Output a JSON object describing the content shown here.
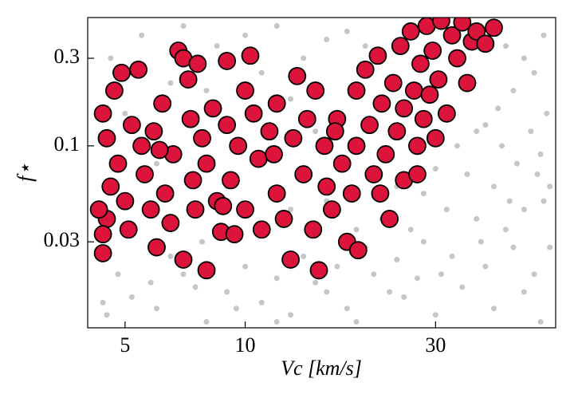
{
  "chart_data": {
    "type": "scatter",
    "xlabel": "Vc [km/s]",
    "ylabel": "f⋆",
    "xscale": "log",
    "yscale": "log",
    "xlim": [
      4.03,
      60
    ],
    "ylim": [
      0.0102,
      0.5
    ],
    "xticks": [
      5,
      10,
      30
    ],
    "yticks": [
      0.03,
      0.1,
      0.3
    ],
    "series": [
      {
        "color": "#808080",
        "x": [
          4.5,
          5.2,
          6,
          7,
          8,
          9,
          11,
          13,
          15,
          18,
          21,
          25,
          30,
          35,
          42,
          50,
          55,
          4.8,
          6.5,
          7.5,
          10,
          12,
          14,
          17,
          20,
          24,
          28,
          33,
          40,
          47,
          53,
          45,
          38,
          50,
          56,
          32,
          42,
          36,
          48,
          55,
          44,
          52,
          40,
          57,
          47,
          53,
          50,
          56,
          45,
          58,
          26,
          22,
          19,
          16,
          13,
          9,
          6,
          5,
          4.6,
          5.5,
          7,
          8.5,
          10,
          12,
          14,
          16,
          18,
          20,
          8,
          11,
          13,
          6.5,
          15,
          17,
          24,
          28,
          30,
          34,
          38,
          43,
          58,
          54,
          46,
          39,
          31,
          27,
          23,
          19,
          16,
          12,
          9.5,
          5.8,
          4.4,
          7.8,
          11,
          36
        ],
        "values": [
          0.012,
          0.015,
          0.013,
          0.02,
          0.011,
          0.016,
          0.014,
          0.012,
          0.018,
          0.013,
          0.02,
          0.015,
          0.012,
          0.017,
          0.013,
          0.016,
          0.011,
          0.02,
          0.025,
          0.017,
          0.022,
          0.019,
          0.025,
          0.022,
          0.028,
          0.024,
          0.03,
          0.025,
          0.022,
          0.028,
          0.02,
          0.035,
          0.04,
          0.045,
          0.05,
          0.045,
          0.06,
          0.07,
          0.08,
          0.09,
          0.1,
          0.12,
          0.13,
          0.15,
          0.2,
          0.25,
          0.3,
          0.4,
          0.35,
          0.028,
          0.035,
          0.04,
          0.035,
          0.05,
          0.045,
          0.06,
          0.08,
          0.15,
          0.3,
          0.4,
          0.45,
          0.35,
          0.4,
          0.45,
          0.3,
          0.38,
          0.42,
          0.35,
          0.2,
          0.25,
          0.18,
          0.22,
          0.12,
          0.08,
          0.06,
          0.055,
          0.075,
          0.1,
          0.12,
          0.16,
          0.06,
          0.07,
          0.05,
          0.03,
          0.02,
          0.019,
          0.016,
          0.011,
          0.016,
          0.011,
          0.013,
          0.018,
          0.014,
          0.03,
          0.035,
          0.45
        ]
      },
      {
        "color": "#dc143c",
        "x": [
          4.4,
          4.5,
          4.6,
          4.5,
          4.4,
          4.4,
          4.7,
          4.8,
          5,
          5.1,
          5.2,
          4.9,
          5.4,
          5.5,
          5.6,
          5.8,
          6,
          5.9,
          6.2,
          6.3,
          6.5,
          6.6,
          6.8,
          7,
          7,
          7.2,
          7.3,
          7.4,
          7.5,
          7.6,
          7.8,
          8,
          8,
          8.3,
          8.5,
          8.7,
          9,
          9,
          9.2,
          9.4,
          9.6,
          10,
          10,
          10.3,
          10.5,
          10.8,
          11,
          11.5,
          12,
          12,
          12.5,
          13,
          13.2,
          13.5,
          14,
          14.3,
          14.8,
          15,
          15.3,
          15.8,
          16,
          16.5,
          17,
          17.5,
          18,
          18.5,
          19,
          19,
          19.2,
          20,
          20.5,
          21,
          21.5,
          22,
          22.5,
          23,
          23.5,
          24,
          24.5,
          25,
          25,
          26,
          26.5,
          27,
          27.5,
          28,
          28.5,
          29,
          29.5,
          30,
          30.5,
          31,
          32,
          33,
          34,
          35,
          36,
          37,
          38,
          40,
          42,
          4.3,
          6.1,
          8.8,
          11.8,
          16.8,
          21.8,
          27
        ],
        "values": [
          0.15,
          0.11,
          0.06,
          0.04,
          0.033,
          0.026,
          0.2,
          0.08,
          0.05,
          0.035,
          0.13,
          0.25,
          0.26,
          0.1,
          0.07,
          0.045,
          0.028,
          0.12,
          0.17,
          0.055,
          0.038,
          0.09,
          0.33,
          0.3,
          0.024,
          0.23,
          0.14,
          0.065,
          0.045,
          0.28,
          0.11,
          0.08,
          0.021,
          0.16,
          0.05,
          0.034,
          0.29,
          0.13,
          0.065,
          0.033,
          0.1,
          0.2,
          0.045,
          0.31,
          0.15,
          0.085,
          0.035,
          0.12,
          0.055,
          0.17,
          0.04,
          0.024,
          0.11,
          0.24,
          0.07,
          0.14,
          0.035,
          0.2,
          0.021,
          0.1,
          0.06,
          0.045,
          0.14,
          0.08,
          0.03,
          0.055,
          0.2,
          0.1,
          0.027,
          0.26,
          0.13,
          0.07,
          0.31,
          0.17,
          0.09,
          0.04,
          0.22,
          0.12,
          0.35,
          0.16,
          0.065,
          0.42,
          0.2,
          0.1,
          0.28,
          0.14,
          0.45,
          0.19,
          0.33,
          0.11,
          0.23,
          0.48,
          0.15,
          0.4,
          0.3,
          0.47,
          0.22,
          0.37,
          0.42,
          0.36,
          0.44,
          0.045,
          0.095,
          0.047,
          0.09,
          0.12,
          0.055,
          0.07
        ]
      }
    ]
  }
}
